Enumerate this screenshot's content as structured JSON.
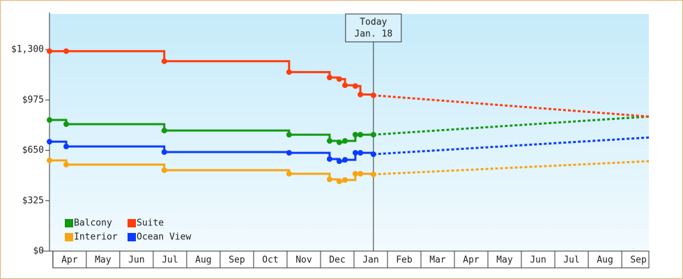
{
  "chart_data": {
    "type": "step-line",
    "x": [
      -0.1,
      0.4,
      3.33,
      7.06,
      8.27,
      8.56,
      8.73,
      9.04,
      9.19,
      9.58
    ],
    "series": [
      {
        "name": "Balcony",
        "color": "#119911",
        "values": [
          846,
          819,
          778,
          751,
          711,
          702,
          711,
          751,
          751,
          751
        ],
        "forecast": [
          751,
          868
        ]
      },
      {
        "name": "Suite",
        "color": "#ff3d0d",
        "values": [
          1290,
          1290,
          1225,
          1155,
          1120,
          1110,
          1070,
          1065,
          1010,
          1005
        ],
        "forecast": [
          1005,
          868
        ]
      },
      {
        "name": "Interior",
        "color": "#f7a410",
        "values": [
          585,
          558,
          522,
          499,
          463,
          450,
          459,
          499,
          499,
          495
        ],
        "forecast": [
          495,
          580
        ]
      },
      {
        "name": "Ocean View",
        "color": "#0b3bff",
        "values": [
          706,
          675,
          639,
          634,
          594,
          580,
          589,
          634,
          634,
          625
        ],
        "forecast": [
          625,
          733
        ]
      }
    ],
    "forecast_x": [
      9.58,
      17.81
    ],
    "annotation": {
      "lines": [
        "Today",
        "Jan. 18"
      ],
      "x": 9.58
    },
    "xlim": [
      -0.1,
      17.81
    ],
    "xticks": [
      {
        "value": 0.5,
        "label": "Apr"
      },
      {
        "value": 1.5,
        "label": "May"
      },
      {
        "value": 2.5,
        "label": "Jun"
      },
      {
        "value": 3.5,
        "label": "Jul"
      },
      {
        "value": 4.5,
        "label": "Aug"
      },
      {
        "value": 5.5,
        "label": "Sep"
      },
      {
        "value": 6.5,
        "label": "Oct"
      },
      {
        "value": 7.5,
        "label": "Nov"
      },
      {
        "value": 8.5,
        "label": "Dec"
      },
      {
        "value": 9.5,
        "label": "Jan"
      },
      {
        "value": 10.5,
        "label": "Feb"
      },
      {
        "value": 11.5,
        "label": "Mar"
      },
      {
        "value": 12.5,
        "label": "Apr"
      },
      {
        "value": 13.5,
        "label": "May"
      },
      {
        "value": 14.5,
        "label": "Jun"
      },
      {
        "value": 15.5,
        "label": "Jul"
      },
      {
        "value": 16.5,
        "label": "Aug"
      },
      {
        "value": 17.5,
        "label": "Sep"
      }
    ],
    "ylim": [
      0,
      1530
    ],
    "yticks": [
      {
        "value": 0,
        "label": "$0"
      },
      {
        "value": 325,
        "label": "$325"
      },
      {
        "value": 650,
        "label": "$650"
      },
      {
        "value": 975,
        "label": "$975"
      },
      {
        "value": 1300,
        "label": "$1,300"
      }
    ]
  }
}
